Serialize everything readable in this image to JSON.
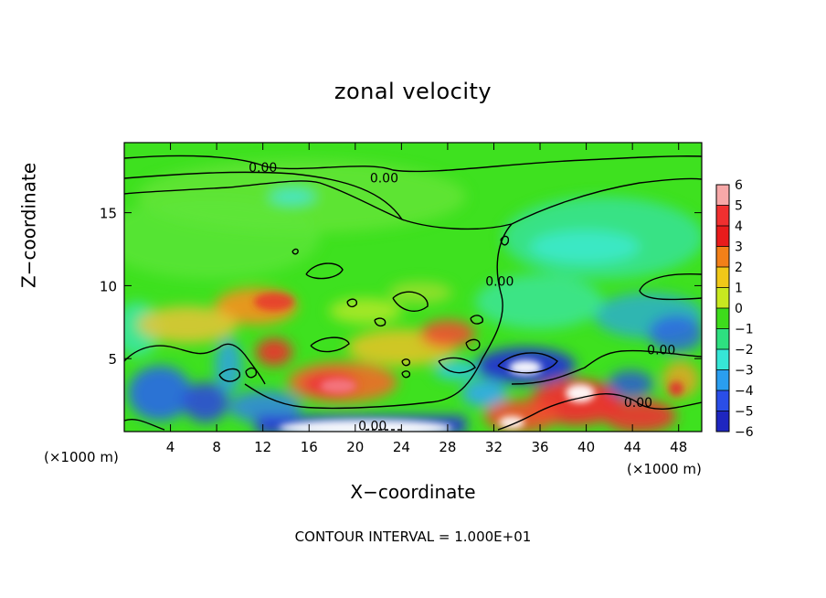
{
  "chart_data": {
    "type": "heatmap",
    "title": "zonal velocity",
    "xlabel": "X−coordinate",
    "ylabel": "Z−coordinate",
    "x_unit_note": "(×1000 m)",
    "x_ticks": [
      4,
      8,
      12,
      16,
      20,
      24,
      28,
      32,
      36,
      40,
      44,
      48
    ],
    "y_ticks": [
      5,
      10,
      15
    ],
    "xlim": [
      0,
      50
    ],
    "ylim": [
      0,
      19.8
    ],
    "colorbar": {
      "ticks": [
        "6",
        "5",
        "4",
        "3",
        "2",
        "1",
        "0",
        "−1",
        "−2",
        "−3",
        "−4",
        "−5",
        "−6"
      ],
      "range": [
        -6,
        6
      ]
    },
    "contour_labels": [
      {
        "text": "0.00",
        "x": 12,
        "y": 18.1
      },
      {
        "text": "0.00",
        "x": 22.5,
        "y": 17.4
      },
      {
        "text": "0.00",
        "x": 32.5,
        "y": 10.3
      },
      {
        "text": "0.00",
        "x": 46.5,
        "y": 5.6
      },
      {
        "text": "0.00",
        "x": 44.5,
        "y": 2.0
      },
      {
        "text": "0.00",
        "x": 21.5,
        "y": 0.4
      }
    ],
    "contour_interval": "CONTOUR INTERVAL = 1.000E+01"
  }
}
